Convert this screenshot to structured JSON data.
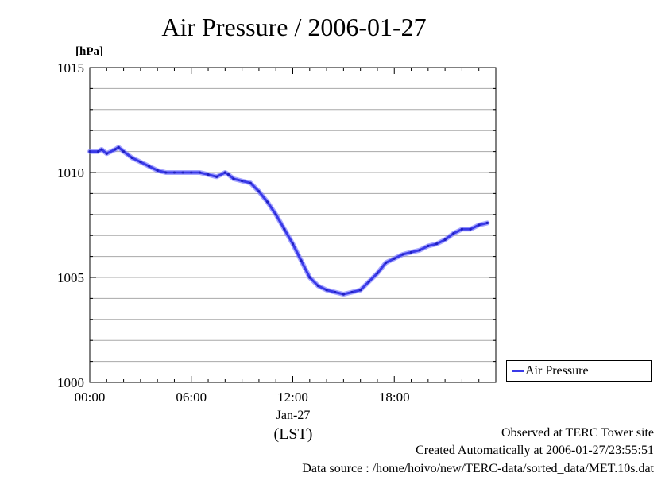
{
  "chart_data": {
    "type": "line",
    "title": "Air Pressure / 2006-01-27",
    "ylabel": "[hPa]",
    "xlabel": "(LST)",
    "x_date_label": "Jan-27",
    "ylim": [
      1000,
      1015
    ],
    "xlim": [
      0,
      24
    ],
    "y_ticks": [
      {
        "value": 1000,
        "label": "1000"
      },
      {
        "value": 1005,
        "label": "1005"
      },
      {
        "value": 1010,
        "label": "1010"
      },
      {
        "value": 1015,
        "label": "1015"
      }
    ],
    "y_gridlines": [
      1001,
      1002,
      1003,
      1004,
      1005,
      1006,
      1007,
      1008,
      1009,
      1010,
      1011,
      1012,
      1013,
      1014
    ],
    "x_ticks": [
      {
        "value": 0,
        "label": "00:00"
      },
      {
        "value": 6,
        "label": "06:00"
      },
      {
        "value": 12,
        "label": "12:00"
      },
      {
        "value": 18,
        "label": "18:00"
      }
    ],
    "grid": "horizontal",
    "legend_position": "right-bottom",
    "series": [
      {
        "name": "Air Pressure",
        "color": "#3a3ae8",
        "x": [
          0,
          0.5,
          0.7,
          1.0,
          1.5,
          1.7,
          2.0,
          2.5,
          3.0,
          3.5,
          4.0,
          4.5,
          5.0,
          5.5,
          6.0,
          6.5,
          7.0,
          7.5,
          8.0,
          8.2,
          8.5,
          9.0,
          9.5,
          10.0,
          10.5,
          11.0,
          11.5,
          12.0,
          12.5,
          13.0,
          13.5,
          14.0,
          14.5,
          15.0,
          15.5,
          16.0,
          16.5,
          17.0,
          17.5,
          18.0,
          18.5,
          19.0,
          19.5,
          20.0,
          20.5,
          21.0,
          21.5,
          22.0,
          22.5,
          23.0,
          23.5
        ],
        "y": [
          1011.0,
          1011.0,
          1011.1,
          1010.9,
          1011.1,
          1011.2,
          1011.0,
          1010.7,
          1010.5,
          1010.3,
          1010.1,
          1010.0,
          1010.0,
          1010.0,
          1010.0,
          1010.0,
          1009.9,
          1009.8,
          1010.0,
          1009.9,
          1009.7,
          1009.6,
          1009.5,
          1009.1,
          1008.6,
          1008.0,
          1007.3,
          1006.6,
          1005.8,
          1005.0,
          1004.6,
          1004.4,
          1004.3,
          1004.2,
          1004.3,
          1004.4,
          1004.8,
          1005.2,
          1005.7,
          1005.9,
          1006.1,
          1006.2,
          1006.3,
          1006.5,
          1006.6,
          1006.8,
          1007.1,
          1007.3,
          1007.3,
          1007.5,
          1007.6
        ]
      }
    ]
  },
  "footer": {
    "line1": "Observed at TERC Tower site",
    "line2": "Created Automatically at 2006-01-27/23:55:51",
    "line3": "Data source : /home/hoivo/new/TERC-data/sorted_data/MET.10s.dat"
  }
}
